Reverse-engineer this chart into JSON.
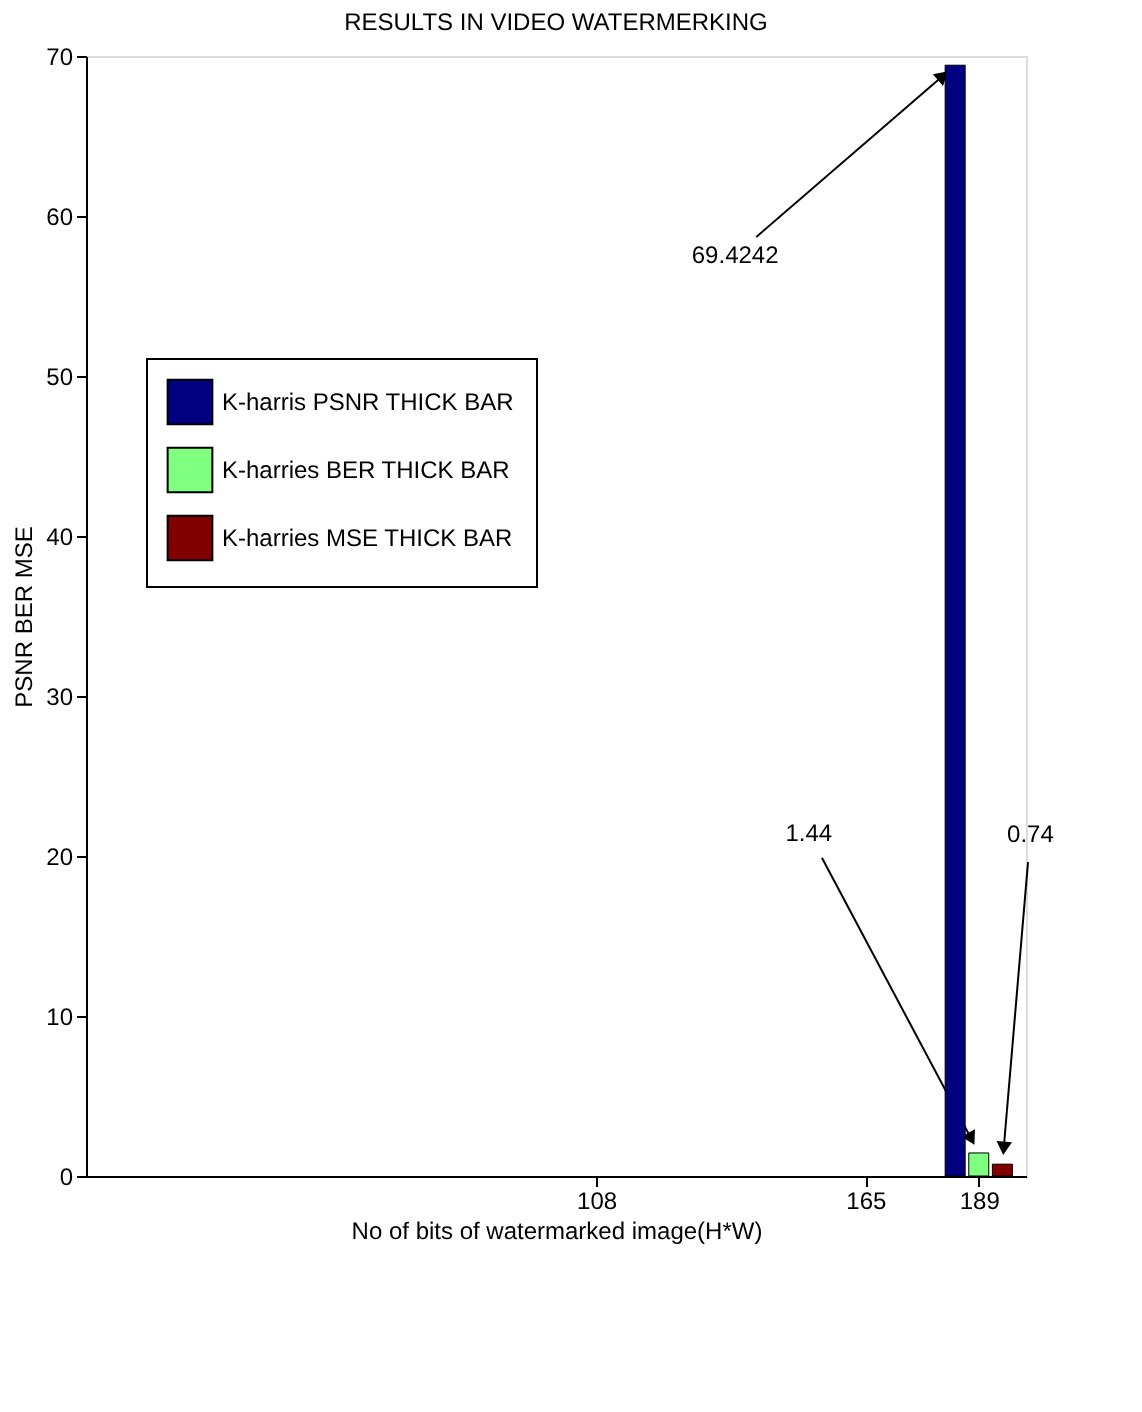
{
  "chart_data": {
    "type": "bar",
    "title": "RESULTS IN VIDEO WATERMERKING",
    "xlabel": "No of bits of watermarked image(H*W)",
    "ylabel": "PSNR BER MSE",
    "series": [
      {
        "name": "K-harris PSNR THICK BAR",
        "color": "#000080",
        "x": [
          184
        ],
        "values": [
          69.4242
        ]
      },
      {
        "name": "K-harries BER THICK BAR",
        "color": "#80ff80",
        "x": [
          189
        ],
        "values": [
          1.44
        ]
      },
      {
        "name": "K-harries MSE THICK BAR",
        "color": "#800000",
        "x": [
          194
        ],
        "values": [
          0.74
        ]
      }
    ],
    "xlim": [
      0,
      199
    ],
    "xticks": [
      108,
      165,
      189
    ],
    "ylim": [
      0,
      70
    ],
    "yticks": [
      0,
      10,
      20,
      30,
      40,
      50,
      60,
      70
    ],
    "annotations": [
      {
        "text": "69.4242",
        "x": 184,
        "y": 69.4242
      },
      {
        "text": "1.44",
        "x": 189,
        "y": 1.44
      },
      {
        "text": "0.74",
        "x": 194,
        "y": 0.74
      }
    ],
    "legend": "left",
    "grid": false
  }
}
